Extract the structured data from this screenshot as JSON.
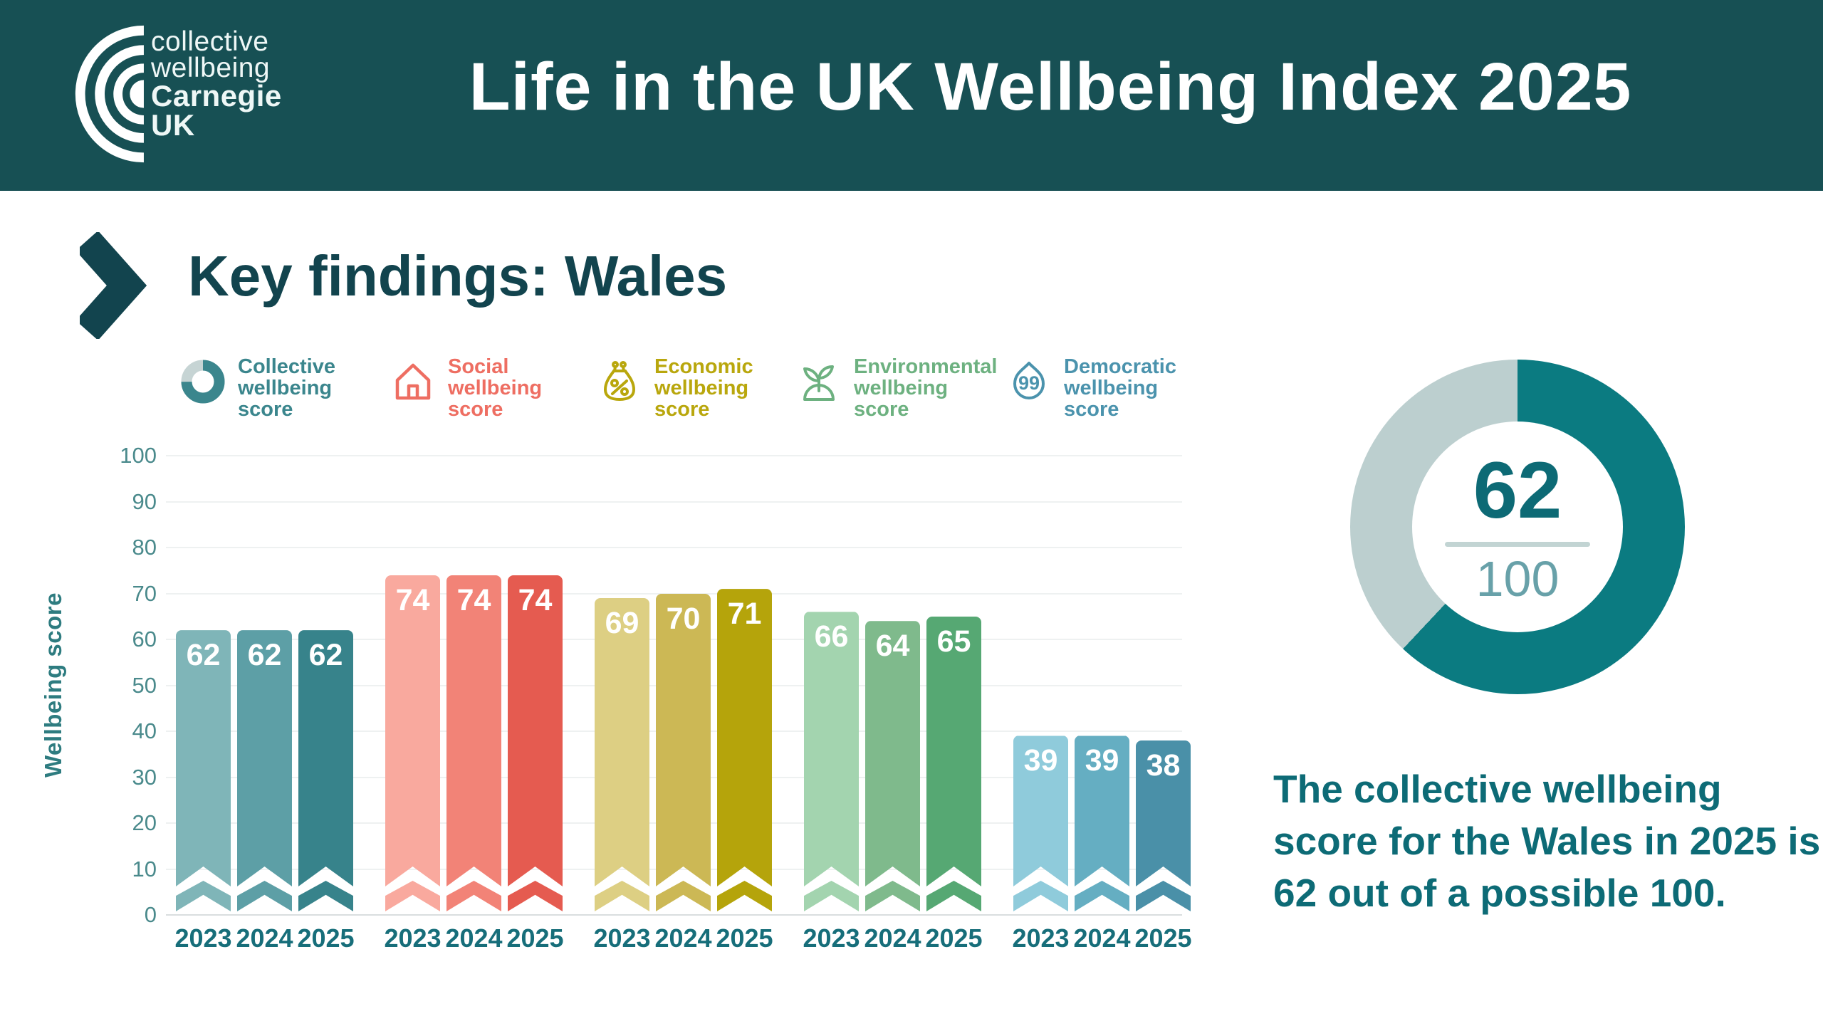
{
  "header": {
    "title": "Life in the UK Wellbeing Index 2025",
    "logo": {
      "line1": "collective",
      "line2": "wellbeing",
      "line3": "Carnegie",
      "line4": "UK"
    }
  },
  "section": {
    "heading": "Key findings: Wales"
  },
  "legend": [
    {
      "label": "Collective wellbeing score",
      "color": "#3b868d",
      "icon": "donut-chart-icon",
      "x": 253
    },
    {
      "label": "Social wellbeing score",
      "color": "#ee6e62",
      "icon": "house-icon",
      "x": 548
    },
    {
      "label": "Economic wellbeing score",
      "color": "#b9a70d",
      "icon": "money-bag-icon",
      "x": 838
    },
    {
      "label": "Environmental wellbeing score",
      "color": "#6db180",
      "icon": "sprout-icon",
      "x": 1118
    },
    {
      "label": "Democratic wellbeing score",
      "color": "#4b93ad",
      "icon": "speech-bubble-icon",
      "x": 1413
    }
  ],
  "chart_data": {
    "type": "bar",
    "title": "",
    "xlabel": "",
    "ylabel": "Wellbeing score",
    "ylim": [
      0,
      100
    ],
    "yticks": [
      0,
      10,
      20,
      30,
      40,
      50,
      60,
      70,
      80,
      90,
      100
    ],
    "grid": true,
    "legend_position": "top",
    "categories": [
      "2023",
      "2024",
      "2025"
    ],
    "series": [
      {
        "name": "Collective wellbeing score",
        "values": [
          62,
          62,
          62
        ],
        "colors": [
          "#7fb5b8",
          "#5d9fa6",
          "#37838b"
        ]
      },
      {
        "name": "Social wellbeing score",
        "values": [
          74,
          74,
          74
        ],
        "colors": [
          "#f9a99e",
          "#f28377",
          "#e55b50"
        ]
      },
      {
        "name": "Economic wellbeing score",
        "values": [
          69,
          70,
          71
        ],
        "colors": [
          "#ddcf83",
          "#ccb855",
          "#b5a40b"
        ]
      },
      {
        "name": "Environmental wellbeing score",
        "values": [
          66,
          64,
          65
        ],
        "colors": [
          "#a3d4af",
          "#7fba8c",
          "#56a873"
        ]
      },
      {
        "name": "Democratic wellbeing score",
        "values": [
          39,
          39,
          38
        ],
        "colors": [
          "#8fcbdb",
          "#65aec2",
          "#4a90a8"
        ]
      }
    ]
  },
  "donut": {
    "value": 62,
    "max": 100,
    "value_label": "62",
    "max_label": "100",
    "color": "#0b7b81",
    "track_color": "#bccfcf"
  },
  "summary": {
    "text": "The collective wellbeing score for the Wales in 2025 is 62 out of a possible 100."
  }
}
